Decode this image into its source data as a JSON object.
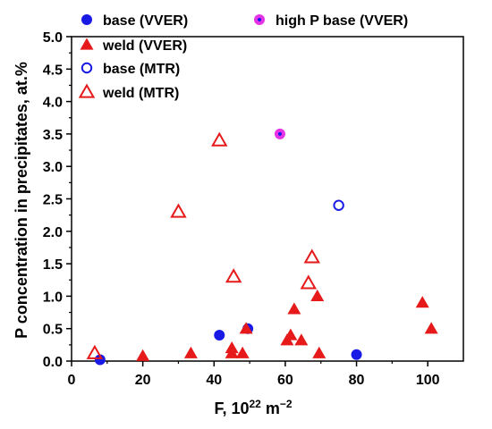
{
  "chart_data": {
    "type": "scatter",
    "title": "",
    "xlabel_main": "F, 10",
    "xlabel_exp": "22",
    "xlabel_unit": " m",
    "xlabel_unit_exp": "−2",
    "ylabel": "P concentration in precipitates, at.%",
    "xlim": [
      0,
      110
    ],
    "ylim": [
      0,
      5.0
    ],
    "xticks": [
      "0",
      "20",
      "40",
      "60",
      "80",
      "100"
    ],
    "yticks": [
      "0.0",
      "0.5",
      "1.0",
      "1.5",
      "2.0",
      "2.5",
      "3.0",
      "3.5",
      "4.0",
      "4.5",
      "5.0"
    ],
    "grid": false,
    "legend_position": "top",
    "colors": {
      "vver_base": "#1a1ae6",
      "weld": "#e61a1a",
      "mtr_base": "#1a1ae6",
      "high_p_fill": "#e633e6",
      "high_p_center": "#1a1ae6"
    },
    "series": [
      {
        "name": "base (VVER)",
        "marker": "filled-circle",
        "color": "#1a1ae6",
        "points": [
          [
            8,
            0.02
          ],
          [
            41.5,
            0.4
          ],
          [
            49.5,
            0.5
          ],
          [
            80,
            0.1
          ]
        ]
      },
      {
        "name": "weld (VVER)",
        "marker": "filled-triangle",
        "color": "#e61a1a",
        "points": [
          [
            20,
            0.08
          ],
          [
            33.5,
            0.12
          ],
          [
            45,
            0.2
          ],
          [
            45,
            0.12
          ],
          [
            48,
            0.12
          ],
          [
            49,
            0.5
          ],
          [
            60.5,
            0.32
          ],
          [
            61.5,
            0.4
          ],
          [
            62.5,
            0.8
          ],
          [
            64.5,
            0.32
          ],
          [
            69,
            1.0
          ],
          [
            69.5,
            0.12
          ],
          [
            98.5,
            0.9
          ],
          [
            101,
            0.5
          ]
        ]
      },
      {
        "name": "base (MTR)",
        "marker": "open-circle",
        "color": "#1a1ae6",
        "points": [
          [
            75,
            2.4
          ]
        ]
      },
      {
        "name": "weld (MTR)",
        "marker": "open-triangle",
        "color": "#e61a1a",
        "points": [
          [
            6.5,
            0.12
          ],
          [
            30,
            2.3
          ],
          [
            41.5,
            3.4
          ],
          [
            45.5,
            1.3
          ],
          [
            66.5,
            1.2
          ],
          [
            67.5,
            1.6
          ]
        ]
      },
      {
        "name": "high P base (VVER)",
        "marker": "dotted-circle",
        "color": "#e633e6",
        "points": [
          [
            58.5,
            3.5
          ]
        ]
      }
    ]
  }
}
